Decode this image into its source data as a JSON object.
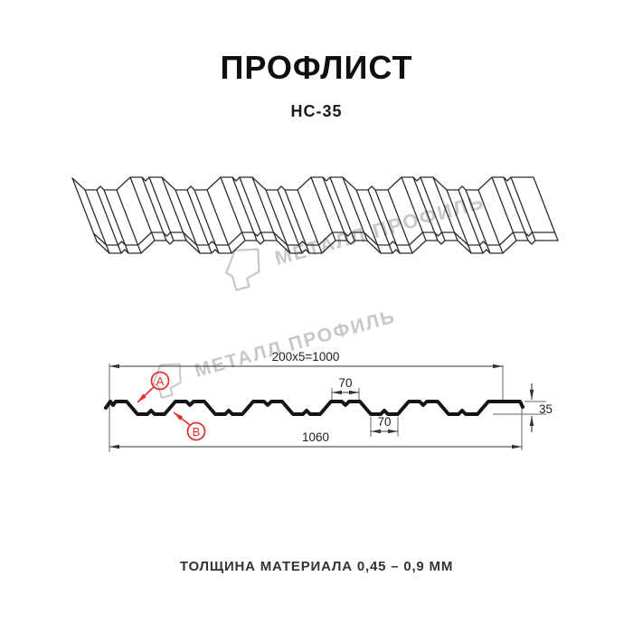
{
  "title": "ПРОФЛИСТ",
  "subtitle": "НС-35",
  "watermark": {
    "text": "МЕТАЛЛ ПРОФИЛЬ"
  },
  "cross_section": {
    "dim_module": "200x5=1000",
    "dim_rib_top_width": "70",
    "dim_rib_bottom_width": "70",
    "dim_overall_width": "1060",
    "dim_height": "35",
    "callout_a": "А",
    "callout_b": "В"
  },
  "footer": {
    "thickness_note": "ТОЛЩИНА МАТЕРИАЛА 0,45 – 0,9 ММ"
  },
  "colors": {
    "accent_red": "#e23131",
    "line_dark": "#141414",
    "watermark_gray": "#c8c8c8"
  }
}
